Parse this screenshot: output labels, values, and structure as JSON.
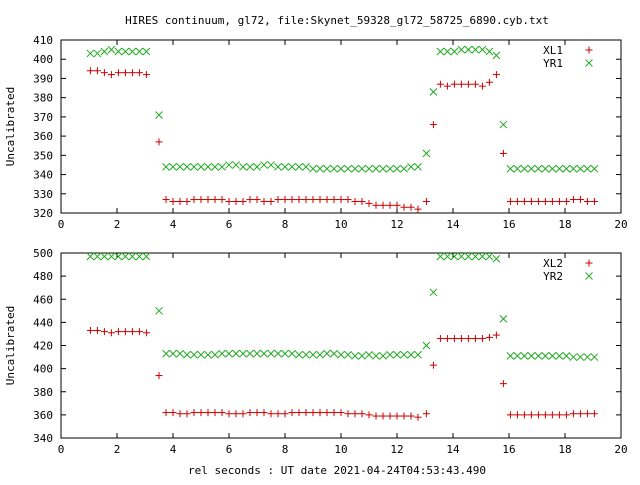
{
  "figure_title": "HIRES continuum, gl72, file:Skynet_59328_gl72_58725_6890.cyb.txt",
  "shared_xlabel": "rel seconds : UT date 2021-04-24T04:53:43.490",
  "colors": {
    "series_a": "#cc0000",
    "series_b": "#22aa22",
    "axis": "#000000"
  },
  "chart_data": [
    {
      "type": "scatter",
      "title": "HIRES continuum, gl72, file:Skynet_59328_gl72_58725_6890.cyb.txt",
      "xlabel": "",
      "ylabel": "Uncalibrated",
      "xlim": [
        0,
        20
      ],
      "ylim": [
        320,
        410
      ],
      "x_ticks": [
        0,
        2,
        4,
        6,
        8,
        10,
        12,
        14,
        16,
        18,
        20
      ],
      "y_ticks": [
        320,
        330,
        340,
        350,
        360,
        370,
        380,
        390,
        400,
        410
      ],
      "grid": false,
      "legend_position": "top-right",
      "series": [
        {
          "name": "XL1",
          "marker": "plus",
          "color": "#cc0000",
          "x": [
            1.05,
            1.3,
            1.55,
            1.8,
            2.05,
            2.3,
            2.55,
            2.8,
            3.05,
            3.5,
            3.75,
            4.0,
            4.25,
            4.5,
            4.75,
            5.0,
            5.25,
            5.5,
            5.75,
            6.0,
            6.25,
            6.5,
            6.75,
            7.0,
            7.25,
            7.5,
            7.75,
            8.0,
            8.25,
            8.5,
            8.75,
            9.0,
            9.25,
            9.5,
            9.75,
            10.0,
            10.25,
            10.5,
            10.75,
            11.0,
            11.25,
            11.5,
            11.75,
            12.0,
            12.25,
            12.5,
            12.75,
            13.05,
            13.3,
            13.55,
            13.8,
            14.05,
            14.3,
            14.55,
            14.8,
            15.05,
            15.3,
            15.55,
            15.8,
            16.05,
            16.3,
            16.55,
            16.8,
            17.05,
            17.3,
            17.55,
            17.8,
            18.05,
            18.3,
            18.55,
            18.8,
            19.05
          ],
          "y": [
            394,
            394,
            393,
            392,
            393,
            393,
            393,
            393,
            392,
            357,
            327,
            326,
            326,
            326,
            327,
            327,
            327,
            327,
            327,
            326,
            326,
            326,
            327,
            327,
            326,
            326,
            327,
            327,
            327,
            327,
            327,
            327,
            327,
            327,
            327,
            327,
            327,
            326,
            326,
            325,
            324,
            324,
            324,
            324,
            323,
            323,
            322,
            326,
            366,
            387,
            386,
            387,
            387,
            387,
            387,
            386,
            388,
            392,
            351,
            326,
            326,
            326,
            326,
            326,
            326,
            326,
            326,
            326,
            327,
            327,
            326,
            326
          ]
        },
        {
          "name": "YR1",
          "marker": "x",
          "color": "#22aa22",
          "x": [
            1.05,
            1.3,
            1.55,
            1.8,
            2.05,
            2.3,
            2.55,
            2.8,
            3.05,
            3.5,
            3.75,
            4.0,
            4.25,
            4.5,
            4.75,
            5.0,
            5.25,
            5.5,
            5.75,
            6.0,
            6.25,
            6.5,
            6.75,
            7.0,
            7.25,
            7.5,
            7.75,
            8.0,
            8.25,
            8.5,
            8.75,
            9.0,
            9.25,
            9.5,
            9.75,
            10.0,
            10.25,
            10.5,
            10.75,
            11.0,
            11.25,
            11.5,
            11.75,
            12.0,
            12.25,
            12.5,
            12.75,
            13.05,
            13.3,
            13.55,
            13.8,
            14.05,
            14.3,
            14.55,
            14.8,
            15.05,
            15.3,
            15.55,
            15.8,
            16.05,
            16.3,
            16.55,
            16.8,
            17.05,
            17.3,
            17.55,
            17.8,
            18.05,
            18.3,
            18.55,
            18.8,
            19.05
          ],
          "y": [
            403,
            403,
            404,
            405,
            404,
            404,
            404,
            404,
            404,
            371,
            344,
            344,
            344,
            344,
            344,
            344,
            344,
            344,
            344,
            345,
            345,
            344,
            344,
            344,
            345,
            345,
            344,
            344,
            344,
            344,
            344,
            343,
            343,
            343,
            343,
            343,
            343,
            343,
            343,
            343,
            343,
            343,
            343,
            343,
            343,
            344,
            344,
            351,
            383,
            404,
            404,
            404,
            405,
            405,
            405,
            405,
            404,
            402,
            366,
            343,
            343,
            343,
            343,
            343,
            343,
            343,
            343,
            343,
            343,
            343,
            343,
            343
          ]
        }
      ]
    },
    {
      "type": "scatter",
      "title": "",
      "xlabel": "rel seconds : UT date 2021-04-24T04:53:43.490",
      "ylabel": "Uncalibrated",
      "xlim": [
        0,
        20
      ],
      "ylim": [
        340,
        500
      ],
      "x_ticks": [
        0,
        2,
        4,
        6,
        8,
        10,
        12,
        14,
        16,
        18,
        20
      ],
      "y_ticks": [
        340,
        360,
        380,
        400,
        420,
        440,
        460,
        480,
        500
      ],
      "grid": false,
      "legend_position": "top-right",
      "series": [
        {
          "name": "XL2",
          "marker": "plus",
          "color": "#cc0000",
          "x": [
            1.05,
            1.3,
            1.55,
            1.8,
            2.05,
            2.3,
            2.55,
            2.8,
            3.05,
            3.5,
            3.75,
            4.0,
            4.25,
            4.5,
            4.75,
            5.0,
            5.25,
            5.5,
            5.75,
            6.0,
            6.25,
            6.5,
            6.75,
            7.0,
            7.25,
            7.5,
            7.75,
            8.0,
            8.25,
            8.5,
            8.75,
            9.0,
            9.25,
            9.5,
            9.75,
            10.0,
            10.25,
            10.5,
            10.75,
            11.0,
            11.25,
            11.5,
            11.75,
            12.0,
            12.25,
            12.5,
            12.75,
            13.05,
            13.3,
            13.55,
            13.8,
            14.05,
            14.3,
            14.55,
            14.8,
            15.05,
            15.3,
            15.55,
            15.8,
            16.05,
            16.3,
            16.55,
            16.8,
            17.05,
            17.3,
            17.55,
            17.8,
            18.05,
            18.3,
            18.55,
            18.8,
            19.05
          ],
          "y": [
            433,
            433,
            432,
            431,
            432,
            432,
            432,
            432,
            431,
            394,
            362,
            362,
            361,
            361,
            362,
            362,
            362,
            362,
            362,
            361,
            361,
            361,
            362,
            362,
            362,
            361,
            361,
            361,
            362,
            362,
            362,
            362,
            362,
            362,
            362,
            362,
            361,
            361,
            361,
            360,
            359,
            359,
            359,
            359,
            359,
            359,
            358,
            361,
            403,
            426,
            426,
            426,
            426,
            426,
            426,
            426,
            427,
            429,
            387,
            360,
            360,
            360,
            360,
            360,
            360,
            360,
            360,
            360,
            361,
            361,
            361,
            361
          ]
        },
        {
          "name": "YR2",
          "marker": "x",
          "color": "#22aa22",
          "x": [
            1.05,
            1.3,
            1.55,
            1.8,
            2.05,
            2.3,
            2.55,
            2.8,
            3.05,
            3.5,
            3.75,
            4.0,
            4.25,
            4.5,
            4.75,
            5.0,
            5.25,
            5.5,
            5.75,
            6.0,
            6.25,
            6.5,
            6.75,
            7.0,
            7.25,
            7.5,
            7.75,
            8.0,
            8.25,
            8.5,
            8.75,
            9.0,
            9.25,
            9.5,
            9.75,
            10.0,
            10.25,
            10.5,
            10.75,
            11.0,
            11.25,
            11.5,
            11.75,
            12.0,
            12.25,
            12.5,
            12.75,
            13.05,
            13.3,
            13.55,
            13.8,
            14.05,
            14.3,
            14.55,
            14.8,
            15.05,
            15.3,
            15.55,
            15.8,
            16.05,
            16.3,
            16.55,
            16.8,
            17.05,
            17.3,
            17.55,
            17.8,
            18.05,
            18.3,
            18.55,
            18.8,
            19.05
          ],
          "y": [
            497,
            497,
            497,
            497,
            497,
            497,
            497,
            497,
            497,
            450,
            413,
            413,
            413,
            412,
            412,
            412,
            412,
            412,
            413,
            413,
            413,
            413,
            413,
            413,
            413,
            413,
            413,
            413,
            413,
            412,
            412,
            412,
            412,
            413,
            413,
            412,
            412,
            411,
            411,
            412,
            411,
            411,
            412,
            412,
            412,
            412,
            412,
            420,
            466,
            497,
            497,
            497,
            497,
            497,
            497,
            497,
            497,
            495,
            443,
            411,
            411,
            411,
            411,
            411,
            411,
            411,
            411,
            411,
            410,
            410,
            410,
            410
          ]
        }
      ]
    }
  ]
}
